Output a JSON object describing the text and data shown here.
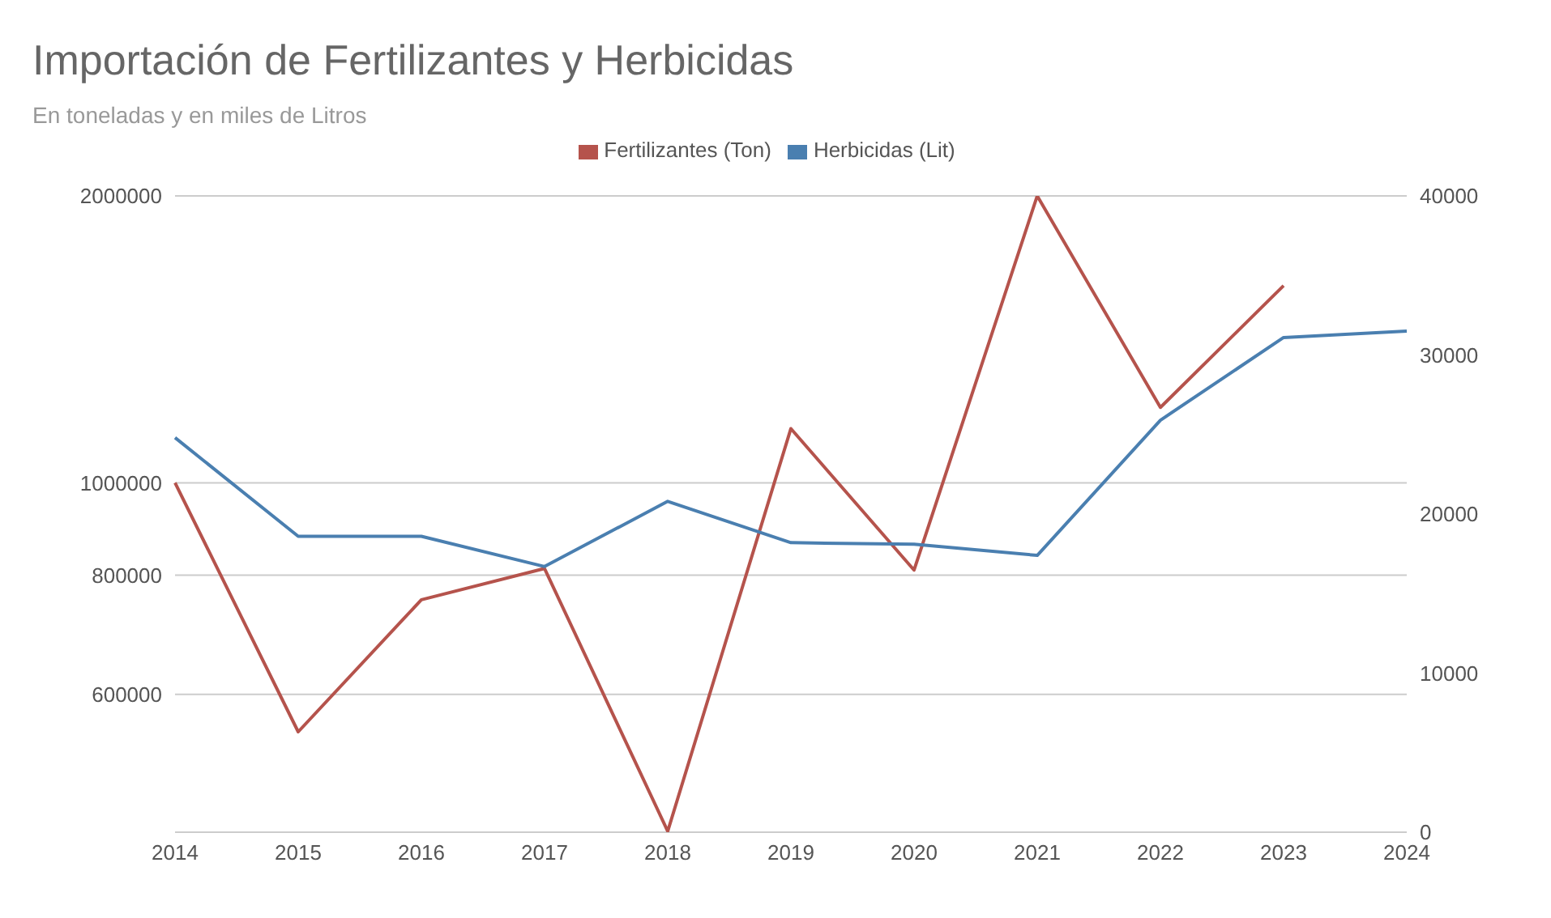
{
  "chart_data": {
    "type": "line",
    "title": "Importación de Fertilizantes y Herbicidas",
    "subtitle": "En toneladas y en miles de Litros",
    "categories": [
      "2014",
      "2015",
      "2016",
      "2017",
      "2018",
      "2019",
      "2020",
      "2021",
      "2022",
      "2023",
      "2024"
    ],
    "series": [
      {
        "name": "Fertilizantes (Ton)",
        "color": "#b5534c",
        "values": [
          1000000,
          548000,
          754000,
          813000,
          431000,
          1140000,
          810000,
          2000000,
          1200000,
          1610000,
          null
        ]
      },
      {
        "name": "Herbicidas (Lit)",
        "color": "#4a7fb0",
        "axis": "y2",
        "values": [
          24800,
          18600,
          18600,
          16700,
          20800,
          18200,
          18100,
          17400,
          25900,
          31100,
          31500
        ]
      }
    ],
    "log": "y",
    "ylim": [
      430000,
      2000000
    ],
    "yticks": [
      600000,
      800000,
      1000000,
      2000000
    ],
    "y2lim": [
      0,
      40000
    ],
    "y2ticks": [
      0,
      10000,
      20000,
      30000,
      40000
    ],
    "grid": "y",
    "legend": "top",
    "marker": "none",
    "line_style": "solid"
  }
}
